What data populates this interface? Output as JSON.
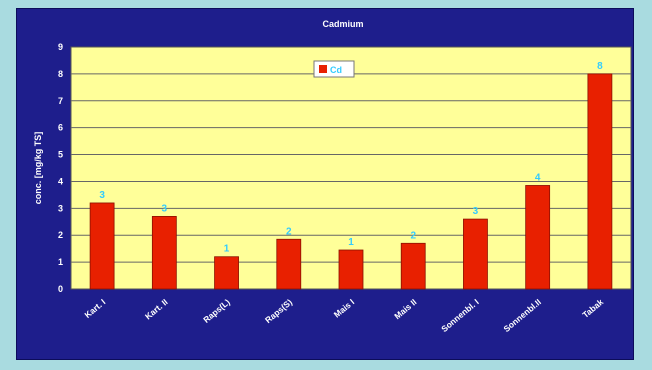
{
  "chart_data": {
    "type": "bar",
    "title": "Cadmium",
    "xlabel": "",
    "ylabel": "conc. [mg/kg TS]",
    "categories": [
      "Kart. I",
      "Kart. II",
      "Raps(L)",
      "Raps(S)",
      "Mais I",
      "Mais II",
      "Sonnenbl. I",
      "Sonnenbl.II",
      "Tabak"
    ],
    "series": [
      {
        "name": "Cd",
        "values": [
          3.2,
          2.7,
          1.2,
          1.85,
          1.45,
          1.7,
          2.6,
          3.85,
          8.0
        ],
        "data_labels": [
          "3",
          "3",
          "1",
          "2",
          "1",
          "2",
          "3",
          "4",
          "8"
        ],
        "color": "#e82000"
      }
    ],
    "ylim": [
      0,
      9
    ],
    "yticks": [
      "0",
      "1",
      "2",
      "3",
      "4",
      "5",
      "6",
      "7",
      "8",
      "9"
    ],
    "grid": true,
    "legend": "top-center",
    "colors": {
      "outer_background": "#a9dbe0",
      "frame_background": "#1e1e8c",
      "plot_background": "#ffff99",
      "bar": "#e82000",
      "data_label": "#33ccff",
      "text": "#ffffff"
    }
  }
}
